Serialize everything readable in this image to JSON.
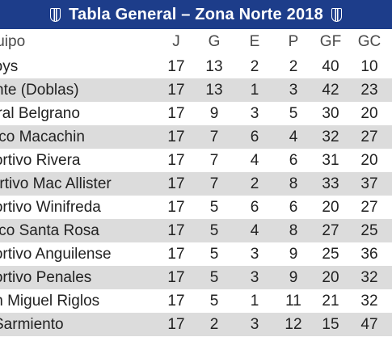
{
  "title": "Tabla General – Zona Norte 2018",
  "colors": {
    "title_bg": "#1d3d8a",
    "stripe": "#dcdcdc"
  },
  "header": {
    "team": "Equipo",
    "j": "J",
    "g": "G",
    "e": "E",
    "p": "P",
    "gf": "GF",
    "gc": "GC"
  },
  "rows": [
    {
      "team": "Boys",
      "j": "17",
      "g": "13",
      "e": "2",
      "p": "2",
      "gf": "40",
      "gc": "10"
    },
    {
      "team": "Independiente (Doblas)",
      "j": "17",
      "g": "13",
      "e": "1",
      "p": "3",
      "gf": "42",
      "gc": "23"
    },
    {
      "team": "General Belgrano",
      "j": "17",
      "g": "9",
      "e": "3",
      "p": "5",
      "gf": "30",
      "gc": "20"
    },
    {
      "team": "Atlético Macachin",
      "j": "17",
      "g": "7",
      "e": "6",
      "p": "4",
      "gf": "32",
      "gc": "27"
    },
    {
      "team": "Deportivo Rivera",
      "j": "17",
      "g": "7",
      "e": "4",
      "p": "6",
      "gf": "31",
      "gc": "20"
    },
    {
      "team": "Deportivo Mac Allister",
      "j": "17",
      "g": "7",
      "e": "2",
      "p": "8",
      "gf": "33",
      "gc": "37"
    },
    {
      "team": "Deportivo Winifreda",
      "j": "17",
      "g": "5",
      "e": "6",
      "p": "6",
      "gf": "20",
      "gc": "27"
    },
    {
      "team": "Atlético Santa Rosa",
      "j": "17",
      "g": "5",
      "e": "4",
      "p": "8",
      "gf": "27",
      "gc": "25"
    },
    {
      "team": "Deportivo Anguilense",
      "j": "17",
      "g": "5",
      "e": "3",
      "p": "9",
      "gf": "25",
      "gc": "36"
    },
    {
      "team": "Deportivo Penales",
      "j": "17",
      "g": "5",
      "e": "3",
      "p": "9",
      "gf": "20",
      "gc": "32"
    },
    {
      "team": "San Miguel Riglos",
      "j": "17",
      "g": "5",
      "e": "1",
      "p": "11",
      "gf": "21",
      "gc": "32"
    },
    {
      "team": "Sarmiento",
      "j": "17",
      "g": "2",
      "e": "3",
      "p": "12",
      "gf": "15",
      "gc": "47"
    }
  ]
}
